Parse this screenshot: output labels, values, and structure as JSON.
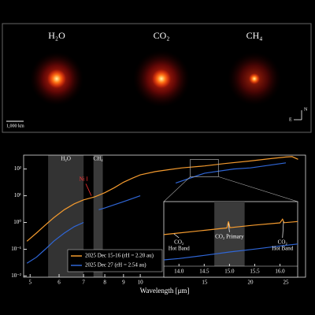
{
  "image_panel": {
    "labels": [
      "H₂O",
      "CO₂",
      "CH₄"
    ],
    "scale_bar": "1,000 km",
    "compass": [
      "N",
      "E"
    ]
  },
  "chart_data": [
    {
      "type": "line",
      "x_label": "Wavelength [μm]",
      "log_x": true,
      "log_y": true,
      "xlim": [
        4.8,
        28.3
      ],
      "ylim": [
        0.009,
        330
      ],
      "xticks": [
        5,
        6,
        7,
        8,
        9,
        10,
        15,
        20,
        25
      ],
      "yticks": [
        {
          "value": 0.01,
          "label": "10⁻²"
        },
        {
          "value": 0.1,
          "label": "10⁻¹"
        },
        {
          "value": 1,
          "label": "10⁰"
        },
        {
          "value": 10,
          "label": "10¹"
        },
        {
          "value": 100,
          "label": "10²"
        }
      ],
      "bands": [
        {
          "label": "H₂O",
          "range": [
            5.6,
            7.0
          ]
        },
        {
          "label": "CH₄",
          "range": [
            7.45,
            7.9
          ]
        }
      ],
      "annotations": [
        "Ni I"
      ],
      "series": [
        {
          "name": "2025 Dec 15-16 (rH = 2.20 au)",
          "color": "#f39a2e",
          "x": [
            4.9,
            5.2,
            5.5,
            5.8,
            6.2,
            6.6,
            7.0,
            7.5,
            8,
            8.5,
            9,
            9.5,
            10,
            11,
            12,
            13,
            15,
            17,
            20,
            23,
            25,
            26,
            27
          ],
          "values": [
            0.2,
            0.4,
            0.8,
            1.5,
            3,
            5,
            7,
            9,
            13,
            20,
            32,
            45,
            60,
            80,
            95,
            110,
            130,
            160,
            200,
            250,
            280,
            290,
            230
          ]
        },
        {
          "name": "2025 Dec 27 (rH = 2.54 au)",
          "color": "#2f66d6",
          "x": [
            4.9,
            5.2,
            5.5,
            5.8,
            6.2,
            6.6,
            7.0,
            7.3,
            7.7,
            8,
            9,
            10,
            11,
            12.5,
            15,
            18,
            20,
            25
          ],
          "values": [
            0.03,
            0.05,
            0.1,
            0.2,
            0.4,
            0.7,
            1.0,
            null,
            3,
            3.5,
            6,
            10,
            null,
            30,
            70,
            100,
            110,
            170
          ]
        }
      ]
    },
    {
      "type": "line",
      "log_y": true,
      "xlim": [
        13.7,
        16.35
      ],
      "ylim": [
        30,
        300
      ],
      "xticks": [
        {
          "value": 14,
          "label": "14.0"
        },
        14.5,
        {
          "value": 15,
          "label": "15.0"
        },
        15.5,
        {
          "value": 16,
          "label": "16.0"
        }
      ],
      "bands": [
        {
          "range": [
            14.7,
            15.3
          ]
        }
      ],
      "annotations": [
        [
          "CO₂",
          "Hot Band"
        ],
        [
          "CO₂ Primary"
        ],
        [
          "CO₂",
          "Hot Band"
        ]
      ],
      "series": [
        {
          "color": "#f39a2e",
          "x": [
            13.7,
            14,
            14.5,
            14.95,
            14.98,
            15.01,
            15.5,
            16,
            16.05,
            16.08,
            16.35
          ],
          "values": [
            98,
            104,
            115,
            126,
            160,
            127,
            140,
            152,
            175,
            153,
            160
          ]
        },
        {
          "color": "#2f66d6",
          "x": [
            13.7,
            14,
            14.5,
            15,
            15.5,
            16,
            16.35
          ],
          "values": [
            38,
            40,
            45,
            51,
            57,
            64,
            69
          ]
        }
      ]
    }
  ]
}
